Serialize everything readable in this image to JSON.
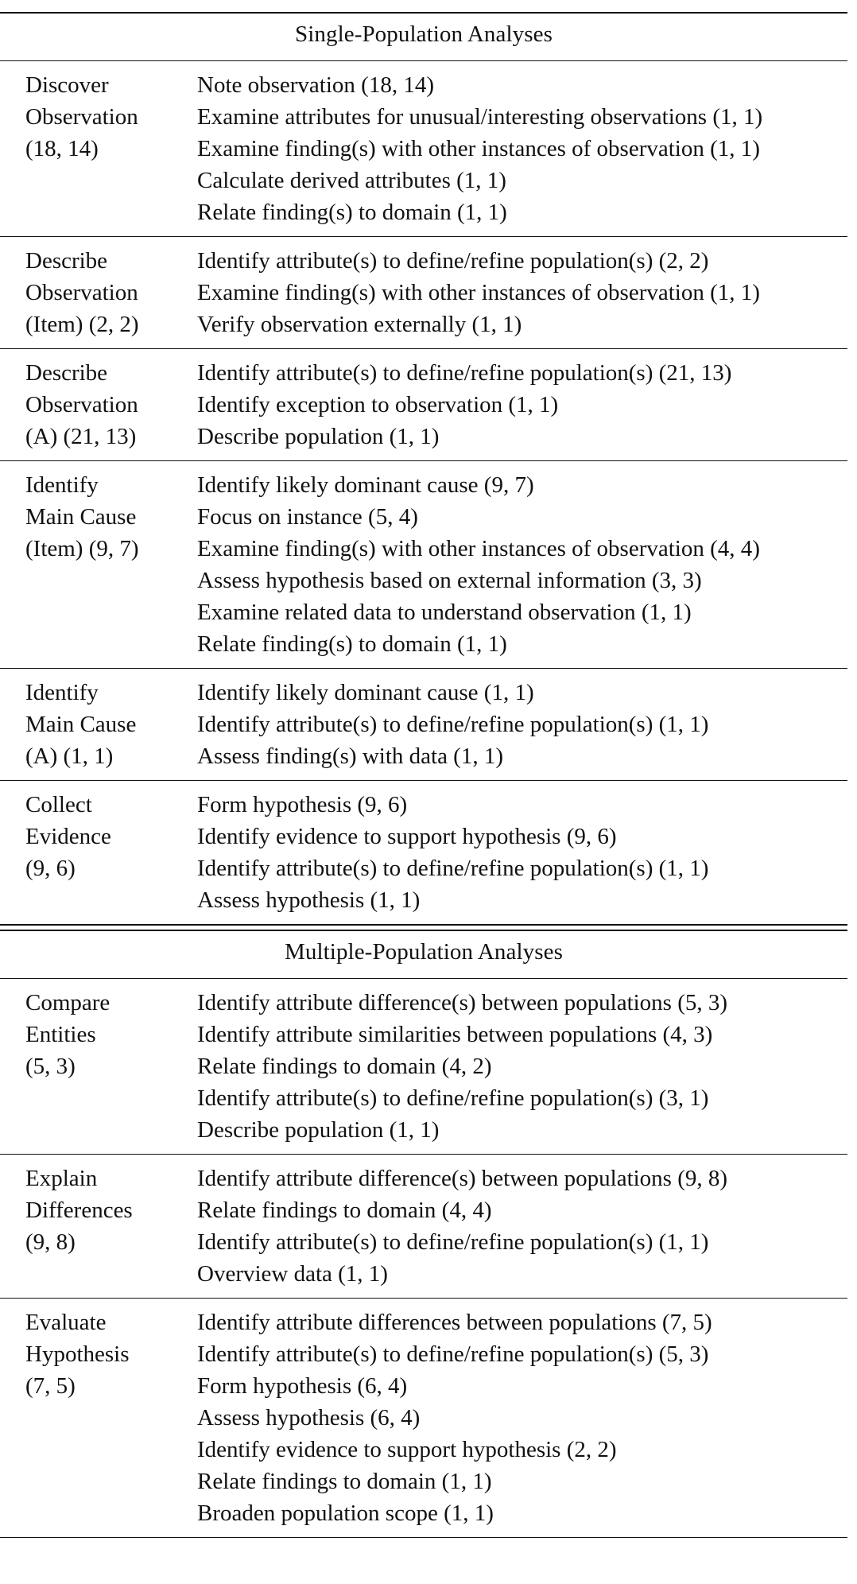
{
  "sections": [
    {
      "title": "Single-Population Analyses",
      "groups": [
        {
          "label": [
            "Discover",
            "Observation",
            "(18, 14)"
          ],
          "items": [
            "Note observation (18, 14)",
            "Examine attributes for unusual/interesting observations (1, 1)",
            "Examine finding(s) with other instances of observation (1, 1)",
            "Calculate derived attributes (1, 1)",
            "Relate finding(s) to domain (1, 1)"
          ]
        },
        {
          "label": [
            "Describe",
            "Observation",
            "(Item) (2, 2)"
          ],
          "items": [
            "Identify attribute(s) to define/refine population(s) (2, 2)",
            "Examine finding(s) with other instances of observation (1, 1)",
            "Verify observation externally (1, 1)"
          ]
        },
        {
          "label": [
            "Describe",
            "Observation",
            "(A) (21, 13)"
          ],
          "items": [
            "Identify attribute(s) to define/refine population(s) (21, 13)",
            "Identify exception to observation (1, 1)",
            "Describe population (1, 1)"
          ]
        },
        {
          "label": [
            "Identify",
            "Main Cause",
            "(Item) (9, 7)"
          ],
          "items": [
            "Identify likely dominant cause (9, 7)",
            "Focus on instance (5, 4)",
            "Examine finding(s) with other instances of observation (4, 4)",
            "Assess hypothesis based on external information (3, 3)",
            "Examine related data to understand observation (1, 1)",
            "Relate finding(s) to domain (1, 1)"
          ]
        },
        {
          "label": [
            "Identify",
            "Main Cause",
            "(A) (1, 1)"
          ],
          "items": [
            "Identify likely dominant cause (1, 1)",
            "Identify attribute(s) to define/refine population(s) (1, 1)",
            "Assess finding(s) with data (1, 1)"
          ]
        },
        {
          "label": [
            "Collect",
            "Evidence",
            "(9, 6)"
          ],
          "items": [
            "Form hypothesis (9, 6)",
            "Identify evidence to support hypothesis (9, 6)",
            "Identify attribute(s) to define/refine population(s) (1, 1)",
            "Assess hypothesis (1, 1)"
          ]
        }
      ]
    },
    {
      "title": "Multiple-Population Analyses",
      "groups": [
        {
          "label": [
            "Compare",
            "Entities",
            "(5, 3)"
          ],
          "items": [
            "Identify attribute difference(s) between populations (5, 3)",
            "Identify attribute similarities between populations (4, 3)",
            "Relate findings to domain (4, 2)",
            "Identify attribute(s) to define/refine population(s) (3, 1)",
            "Describe population (1, 1)"
          ]
        },
        {
          "label": [
            "Explain",
            "Differences",
            "(9, 8)"
          ],
          "items": [
            "Identify attribute difference(s) between populations (9, 8)",
            "Relate findings to domain (4, 4)",
            "Identify attribute(s) to define/refine population(s) (1, 1)",
            "Overview data (1, 1)"
          ]
        },
        {
          "label": [
            "Evaluate",
            "Hypothesis",
            "(7, 5)"
          ],
          "items": [
            "Identify attribute differences between populations (7, 5)",
            "Identify attribute(s) to define/refine population(s) (5, 3)",
            "Form hypothesis (6, 4)",
            "Assess hypothesis (6, 4)",
            "Identify evidence to support hypothesis (2, 2)",
            "Relate findings to domain (1, 1)",
            "Broaden population scope (1, 1)"
          ]
        }
      ]
    }
  ]
}
